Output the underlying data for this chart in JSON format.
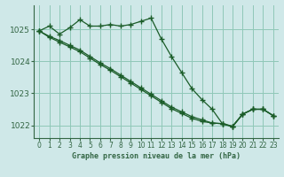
{
  "title": "Graphe pression niveau de la mer (hPa)",
  "background_color": "#cfe8e8",
  "grid_color": "#90c8b8",
  "line_color": "#1a5c28",
  "axis_color": "#336644",
  "xlim": [
    -0.5,
    23.5
  ],
  "ylim": [
    1021.6,
    1025.75
  ],
  "yticks": [
    1022,
    1023,
    1024,
    1025
  ],
  "xticks": [
    0,
    1,
    2,
    3,
    4,
    5,
    6,
    7,
    8,
    9,
    10,
    11,
    12,
    13,
    14,
    15,
    16,
    17,
    18,
    19,
    20,
    21,
    22,
    23
  ],
  "line1_x": [
    0,
    1,
    2,
    3,
    4,
    5,
    6,
    7,
    8,
    9,
    10,
    11,
    12,
    13,
    14,
    15,
    16,
    17,
    18,
    19,
    20,
    21,
    22,
    23
  ],
  "line1_y": [
    1024.95,
    1025.1,
    1024.85,
    1025.05,
    1025.3,
    1025.1,
    1025.1,
    1025.15,
    1025.1,
    1025.15,
    1025.25,
    1025.35,
    1024.7,
    1024.15,
    1023.65,
    1023.15,
    1022.8,
    1022.5,
    1022.05,
    1021.95,
    1022.35,
    1022.5,
    1022.5,
    1022.3
  ],
  "line2_x": [
    0,
    1,
    2,
    3,
    4,
    5,
    6,
    7,
    8,
    9,
    10,
    11,
    12,
    13,
    14,
    15,
    16,
    17,
    18,
    19,
    20,
    21,
    22,
    23
  ],
  "line2_y": [
    1024.95,
    1024.75,
    1024.6,
    1024.45,
    1024.3,
    1024.1,
    1023.9,
    1023.72,
    1023.52,
    1023.32,
    1023.12,
    1022.92,
    1022.72,
    1022.52,
    1022.37,
    1022.22,
    1022.12,
    1022.07,
    1022.05,
    1021.97,
    1022.35,
    1022.5,
    1022.5,
    1022.3
  ],
  "line3_x": [
    0,
    1,
    2,
    3,
    4,
    5,
    6,
    7,
    8,
    9,
    10,
    11,
    12,
    13,
    14,
    15,
    16,
    17,
    18,
    19,
    20,
    21,
    22,
    23
  ],
  "line3_y": [
    1024.95,
    1024.78,
    1024.65,
    1024.5,
    1024.35,
    1024.15,
    1023.95,
    1023.77,
    1023.57,
    1023.37,
    1023.17,
    1022.97,
    1022.77,
    1022.57,
    1022.42,
    1022.27,
    1022.17,
    1022.07,
    1022.05,
    1021.97,
    1022.35,
    1022.5,
    1022.5,
    1022.3
  ]
}
